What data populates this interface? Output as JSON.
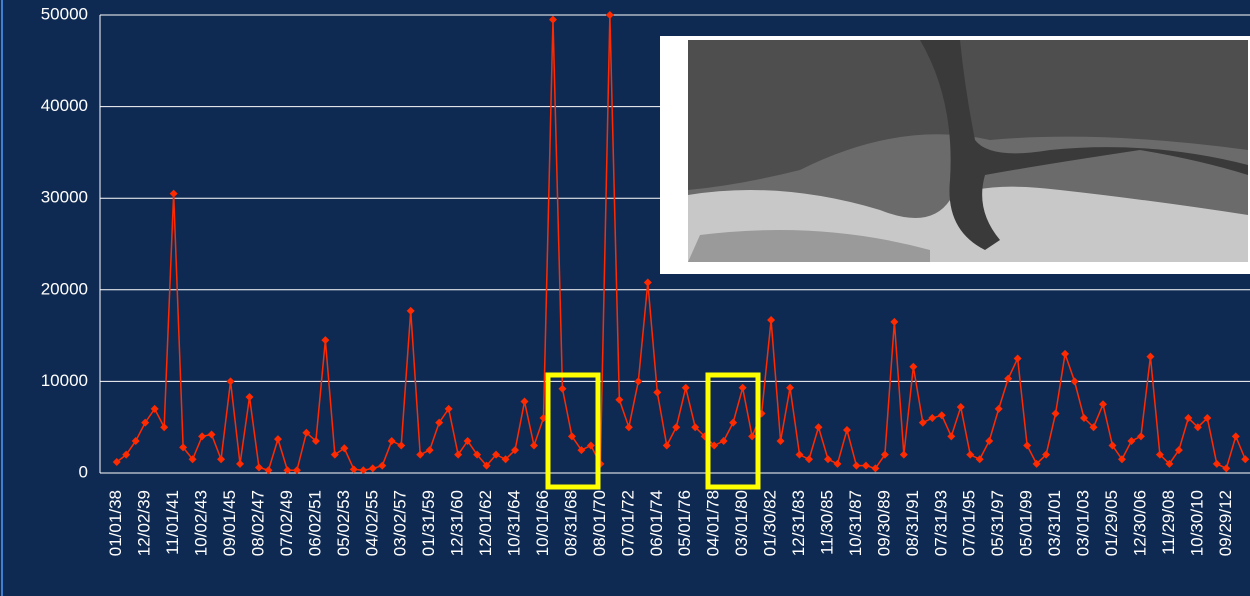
{
  "chart_data": {
    "type": "line",
    "color": "#ff2a00",
    "grid": true,
    "ylim": [
      0,
      50000
    ],
    "yticks": [
      0,
      10000,
      20000,
      30000,
      40000,
      50000
    ],
    "categories": [
      "01/01/38",
      null,
      null,
      "12/02/39",
      null,
      null,
      "11/01/41",
      null,
      null,
      "10/02/43",
      null,
      null,
      "09/01/45",
      null,
      null,
      "08/02/47",
      null,
      null,
      "07/02/49",
      null,
      null,
      "06/02/51",
      null,
      null,
      "05/02/53",
      null,
      null,
      "04/02/55",
      null,
      null,
      "03/02/57",
      null,
      null,
      "01/31/59",
      null,
      null,
      "12/31/60",
      null,
      null,
      "12/01/62",
      null,
      null,
      "10/31/64",
      null,
      null,
      "10/01/66",
      null,
      null,
      "08/31/68",
      null,
      null,
      "08/01/70",
      null,
      null,
      "07/01/72",
      null,
      null,
      "06/01/74",
      null,
      null,
      "05/01/76",
      null,
      null,
      "04/01/78",
      null,
      null,
      "03/01/80",
      null,
      null,
      "01/30/82",
      null,
      null,
      "12/31/83",
      null,
      null,
      "11/30/85",
      null,
      null,
      "10/31/87",
      null,
      null,
      "09/30/89",
      null,
      null,
      "08/31/91",
      null,
      null,
      "07/31/93",
      null,
      null,
      "07/01/95",
      null,
      null,
      "05/31/97",
      null,
      null,
      "05/01/99",
      null,
      null,
      "03/31/01",
      null,
      null,
      "03/01/03",
      null,
      null,
      "01/29/05",
      null,
      null,
      "12/30/06",
      null,
      null,
      "11/29/08",
      null,
      null,
      "10/30/10",
      null,
      null,
      "09/29/12",
      null,
      null
    ],
    "values": [
      1200,
      2000,
      3500,
      5500,
      7000,
      5000,
      30500,
      2800,
      1500,
      4000,
      4200,
      1500,
      10000,
      1000,
      8300,
      600,
      300,
      3700,
      300,
      300,
      4400,
      3500,
      14500,
      2000,
      2700,
      400,
      300,
      500,
      800,
      3500,
      3000,
      17700,
      2000,
      2500,
      5500,
      7000,
      2000,
      3500,
      2000,
      800,
      2000,
      1500,
      2500,
      7800,
      3000,
      6000,
      49500,
      9200,
      4000,
      2500,
      3000,
      1000,
      50000,
      8000,
      5000,
      10000,
      20800,
      8800,
      3000,
      5000,
      9300,
      5000,
      4000,
      3000,
      3500,
      5500,
      9300,
      4000,
      6500,
      16700,
      3500,
      9300,
      2000,
      1500,
      5000,
      1500,
      1000,
      4700,
      800,
      800,
      500,
      2000,
      16500,
      2000,
      11600,
      5500,
      6000,
      6300,
      4000,
      7200,
      2000,
      1500,
      3500,
      7000,
      10300,
      12500,
      3000,
      1000,
      2000,
      6500,
      13000,
      10000,
      6000,
      5000,
      7500,
      3000,
      1500,
      3500,
      4000,
      12700,
      2000,
      1000,
      2500,
      6000,
      5000,
      6000,
      1000,
      500,
      4000,
      1500
    ]
  }
}
